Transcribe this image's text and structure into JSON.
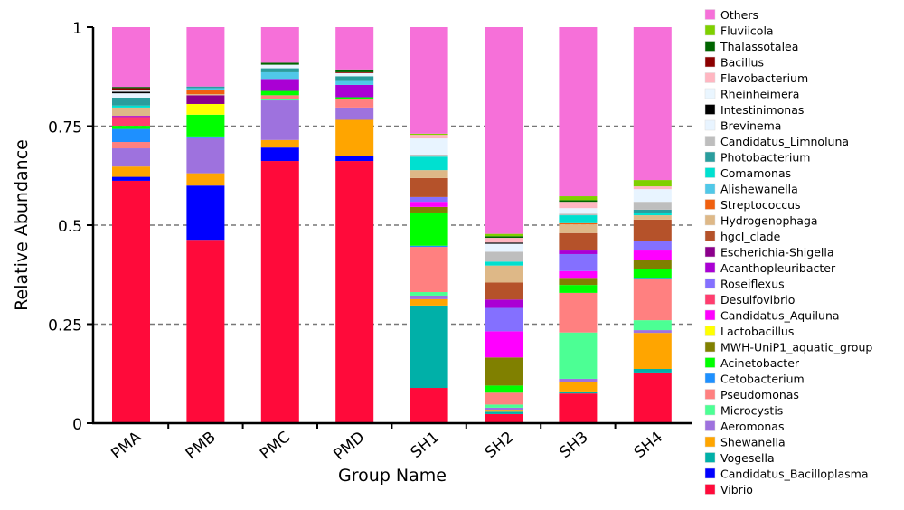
{
  "chart_data": {
    "type": "bar",
    "stacked": true,
    "title": "",
    "xlabel": "Group Name",
    "ylabel": "Relative Abundance",
    "ylim": [
      0,
      1
    ],
    "yticks": [
      "0",
      "0.25",
      "0.5",
      "0.75",
      "1"
    ],
    "ytick_values": [
      0,
      0.25,
      0.5,
      0.75,
      1
    ],
    "grid": "horizontal dashed at 0.25, 0.5, 0.75",
    "legend_position": "right",
    "categories": [
      "PMA",
      "PMB",
      "PMC",
      "PMD",
      "SH1",
      "SH2",
      "SH3",
      "SH4"
    ],
    "series": [
      {
        "name": "Vibrio",
        "color": "#FF0A3A",
        "values": [
          0.612,
          0.463,
          0.662,
          0.662,
          0.089,
          0.023,
          0.075,
          0.128
        ]
      },
      {
        "name": "Candidatus_Bacilloplasma",
        "color": "#0000FF",
        "values": [
          0.01,
          0.137,
          0.034,
          0.013,
          0,
          0,
          0,
          0
        ]
      },
      {
        "name": "Vogesella",
        "color": "#00B0A8",
        "values": [
          0,
          0,
          0,
          0,
          0.208,
          0.006,
          0.005,
          0.009
        ]
      },
      {
        "name": "Shewanella",
        "color": "#FFA500",
        "values": [
          0.026,
          0.031,
          0.019,
          0.091,
          0.016,
          0.005,
          0.023,
          0.091
        ]
      },
      {
        "name": "Aeromonas",
        "color": "#9E72DE",
        "values": [
          0.046,
          0.089,
          0.1,
          0.031,
          0.009,
          0.005,
          0.009,
          0.007
        ]
      },
      {
        "name": "Microcystis",
        "color": "#4CFF94",
        "values": [
          0,
          0,
          0.003,
          0,
          0.009,
          0.008,
          0.117,
          0.025
        ]
      },
      {
        "name": "Pseudomonas",
        "color": "#FF8080",
        "values": [
          0.016,
          0,
          0.01,
          0.022,
          0.114,
          0.03,
          0.1,
          0.103
        ]
      },
      {
        "name": "Cetobacterium",
        "color": "#1E90FF",
        "values": [
          0.033,
          0.004,
          0,
          0,
          0.003,
          0,
          0,
          0.004
        ]
      },
      {
        "name": "Acinetobacter",
        "color": "#00FF00",
        "values": [
          0.008,
          0.055,
          0.011,
          0.004,
          0.084,
          0.018,
          0.02,
          0.023
        ]
      },
      {
        "name": "MWH-UniP1_aquatic_group",
        "color": "#808000",
        "values": [
          0,
          0,
          0,
          0,
          0.014,
          0.071,
          0.018,
          0.021
        ]
      },
      {
        "name": "Lactobacillus",
        "color": "#FFFF00",
        "values": [
          0,
          0.027,
          0,
          0,
          0,
          0,
          0,
          0
        ]
      },
      {
        "name": "Candidatus_Aquiluna",
        "color": "#FF00FF",
        "values": [
          0,
          0,
          0,
          0,
          0.013,
          0.066,
          0.017,
          0.025
        ]
      },
      {
        "name": "Desulfovibrio",
        "color": "#FF3D6E",
        "values": [
          0.022,
          0,
          0,
          0,
          0,
          0,
          0,
          0
        ]
      },
      {
        "name": "Roseiflexus",
        "color": "#8470FF",
        "values": [
          0,
          0,
          0,
          0,
          0.012,
          0.059,
          0.043,
          0.025
        ]
      },
      {
        "name": "Acanthopleuribacter",
        "color": "#AA00D4",
        "values": [
          0.003,
          0,
          0.03,
          0.031,
          0,
          0.021,
          0.009,
          0
        ]
      },
      {
        "name": "Escherichia-Shigella",
        "color": "#8B008B",
        "values": [
          0,
          0.022,
          0,
          0,
          0,
          0,
          0,
          0
        ]
      },
      {
        "name": "hgcI_clade",
        "color": "#B5522A",
        "values": [
          0,
          0,
          0,
          0,
          0.048,
          0.043,
          0.044,
          0.053
        ]
      },
      {
        "name": "Hydrogenophaga",
        "color": "#DEB887",
        "values": [
          0.021,
          0.003,
          0,
          0,
          0.02,
          0.043,
          0.022,
          0.011
        ]
      },
      {
        "name": "Streptococcus",
        "color": "#F06010",
        "values": [
          0,
          0.011,
          0,
          0,
          0,
          0,
          0.003,
          0
        ]
      },
      {
        "name": "Alishewanella",
        "color": "#50C8E8",
        "values": [
          0,
          0.004,
          0.017,
          0.01,
          0,
          0,
          0,
          0
        ]
      },
      {
        "name": "Comamonas",
        "color": "#00E0D0",
        "values": [
          0.005,
          0,
          0,
          0,
          0.034,
          0.01,
          0.02,
          0.007
        ]
      },
      {
        "name": "Photobacterium",
        "color": "#2A9D9D",
        "values": [
          0.02,
          0.004,
          0.01,
          0.012,
          0,
          0,
          0,
          0.007
        ]
      },
      {
        "name": "Candidatus_Limnoluna",
        "color": "#BEBEBE",
        "values": [
          0,
          0,
          0,
          0,
          0.005,
          0.025,
          0.004,
          0.02
        ]
      },
      {
        "name": "Brevinema",
        "color": "#E8F4FF",
        "values": [
          0.011,
          0,
          0.009,
          0.008,
          0.041,
          0.02,
          0.014,
          0.032
        ]
      },
      {
        "name": "Intestinimonas",
        "color": "#000000",
        "values": [
          0.004,
          0,
          0,
          0,
          0,
          0.003,
          0,
          0
        ]
      },
      {
        "name": "Rheinheimera",
        "color": "#EAF6FF",
        "values": [
          0.003,
          0,
          0,
          0,
          0,
          0,
          0,
          0
        ]
      },
      {
        "name": "Flavobacterium",
        "color": "#FFB6C1",
        "values": [
          0,
          0,
          0,
          0,
          0.009,
          0.012,
          0.016,
          0.007
        ]
      },
      {
        "name": "Bacillus",
        "color": "#8B0000",
        "values": [
          0.006,
          0,
          0,
          0.002,
          0,
          0,
          0,
          0
        ]
      },
      {
        "name": "Thalassotalea",
        "color": "#006400",
        "values": [
          0.003,
          0,
          0.005,
          0.007,
          0,
          0.004,
          0.004,
          0
        ]
      },
      {
        "name": "Fluviicola",
        "color": "#7FD000",
        "values": [
          0,
          0,
          0,
          0,
          0.003,
          0.006,
          0.01,
          0.016
        ]
      },
      {
        "name": "Others",
        "color": "#F670D9",
        "values": [
          0.151,
          0.15,
          0.09,
          0.107,
          0.269,
          0.522,
          0.427,
          0.386
        ]
      }
    ]
  }
}
